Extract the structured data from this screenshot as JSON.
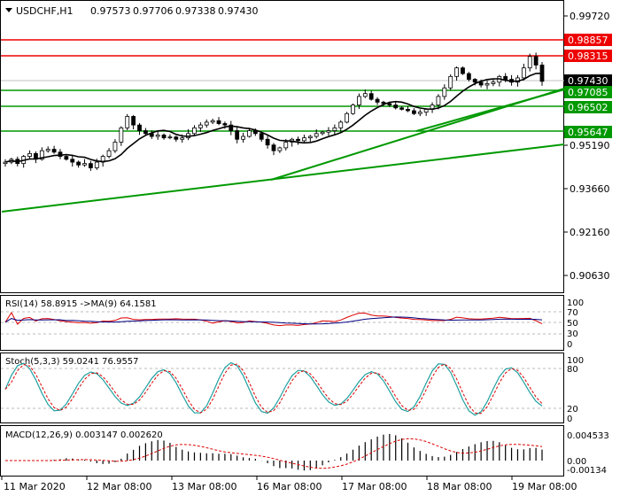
{
  "chart_data": {
    "type": "candlestick",
    "symbol": "USDCHF,H1",
    "ohlc_header": [
      "0.97573",
      "0.97706",
      "0.97338",
      "0.97430"
    ],
    "x_tick_labels": [
      "11 Mar 2020",
      "12 Mar 08:00",
      "13 Mar 08:00",
      "16 Mar 08:00",
      "17 Mar 08:00",
      "18 Mar 08:00",
      "19 Mar 08:00"
    ],
    "price_axis": {
      "ticks": [
        "0.99720",
        "0.95190",
        "0.93660",
        "0.92160",
        "0.90630"
      ],
      "range": [
        0.9,
        0.999
      ]
    },
    "current_price": "0.97430",
    "levels": [
      {
        "price": 0.98857,
        "label": "0.98857",
        "color": "#ee0000"
      },
      {
        "price": 0.98315,
        "label": "0.98315",
        "color": "#ee0000"
      },
      {
        "price": 0.97085,
        "label": "0.97085",
        "color": "#009900"
      },
      {
        "price": 0.96502,
        "label": "0.96502",
        "color": "#009900"
      },
      {
        "price": 0.95647,
        "label": "0.95647",
        "color": "#009900"
      }
    ],
    "trendlines": [
      {
        "from": [
          0,
          0.939
        ],
        "to": [
          113,
          0.954
        ]
      },
      {
        "from": [
          36,
          0.95
        ],
        "to": [
          113,
          0.9715
        ]
      },
      {
        "from": [
          66,
          0.959
        ],
        "to": [
          113,
          0.971
        ]
      }
    ],
    "close_series": [
      0.946,
      0.947,
      0.9455,
      0.948,
      0.949,
      0.947,
      0.95,
      0.9505,
      0.9495,
      0.948,
      0.947,
      0.946,
      0.945,
      0.9455,
      0.944,
      0.946,
      0.948,
      0.95,
      0.953,
      0.958,
      0.962,
      0.959,
      0.957,
      0.956,
      0.955,
      0.9555,
      0.9545,
      0.9548,
      0.954,
      0.9545,
      0.956,
      0.958,
      0.959,
      0.96,
      0.9605,
      0.9595,
      0.959,
      0.957,
      0.954,
      0.955,
      0.957,
      0.956,
      0.954,
      0.952,
      0.95,
      0.951,
      0.953,
      0.954,
      0.9535,
      0.9545,
      0.955,
      0.956,
      0.9565,
      0.957,
      0.958,
      0.96,
      0.963,
      0.966,
      0.969,
      0.97,
      0.968,
      0.967,
      0.9665,
      0.966,
      0.965,
      0.9645,
      0.964,
      0.963,
      0.9635,
      0.9645,
      0.966,
      0.969,
      0.972,
      0.976,
      0.979,
      0.977,
      0.975,
      0.974,
      0.973,
      0.9735,
      0.974,
      0.976,
      0.975,
      0.974,
      0.9755,
      0.979,
      0.983,
      0.98,
      0.9743
    ],
    "indicators": {
      "rsi": {
        "label": "RSI(14) 58.8915  ->MA(9) 64.1581",
        "levels": [
          "100",
          "70",
          "50",
          "30",
          "0"
        ]
      },
      "stoch": {
        "label": "Stoch(5,3,3) 59.0241 76.9557",
        "levels": [
          "100",
          "80",
          "20",
          "0"
        ]
      },
      "macd": {
        "label": "MACD(12,26,9) 0.003147 0.002620",
        "levels": [
          "0.004533",
          "0.00",
          "-0.00134"
        ]
      }
    }
  }
}
